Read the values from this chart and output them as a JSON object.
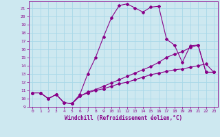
{
  "xlabel": "Windchill (Refroidissement éolien,°C)",
  "bg_color": "#cde8f0",
  "line_color": "#880088",
  "grid_color": "#a8d8e8",
  "xlim": [
    -0.5,
    23.5
  ],
  "ylim": [
    9,
    21.8
  ],
  "xticks": [
    0,
    1,
    2,
    3,
    4,
    5,
    6,
    7,
    8,
    9,
    10,
    11,
    12,
    13,
    14,
    15,
    16,
    17,
    18,
    19,
    20,
    21,
    22,
    23
  ],
  "yticks": [
    9,
    10,
    11,
    12,
    13,
    14,
    15,
    16,
    17,
    18,
    19,
    20,
    21
  ],
  "line1_x": [
    0,
    1,
    2,
    3,
    4,
    5,
    6,
    7,
    8,
    9,
    10,
    11,
    12,
    13,
    14,
    15,
    16,
    17,
    18,
    19,
    20,
    21,
    22,
    23
  ],
  "line1_y": [
    10.7,
    10.7,
    10.0,
    10.5,
    9.5,
    9.4,
    10.5,
    13.0,
    15.0,
    17.5,
    19.8,
    21.3,
    21.5,
    21.0,
    20.5,
    21.1,
    21.2,
    17.2,
    16.5,
    14.4,
    16.4,
    16.5,
    13.2,
    13.2
  ],
  "line2_x": [
    0,
    1,
    2,
    3,
    4,
    5,
    6,
    7,
    8,
    9,
    10,
    11,
    12,
    13,
    14,
    15,
    16,
    17,
    18,
    19,
    20,
    21,
    22,
    23
  ],
  "line2_y": [
    10.7,
    10.7,
    10.0,
    10.5,
    9.5,
    9.4,
    10.3,
    10.8,
    11.1,
    11.5,
    11.9,
    12.3,
    12.7,
    13.1,
    13.5,
    13.9,
    14.4,
    15.0,
    15.4,
    15.7,
    16.2,
    16.5,
    13.2,
    13.2
  ],
  "line3_x": [
    0,
    1,
    2,
    3,
    4,
    5,
    6,
    7,
    8,
    9,
    10,
    11,
    12,
    13,
    14,
    15,
    16,
    17,
    18,
    19,
    20,
    21,
    22,
    23
  ],
  "line3_y": [
    10.7,
    10.7,
    10.0,
    10.5,
    9.5,
    9.4,
    10.3,
    10.7,
    11.0,
    11.2,
    11.5,
    11.8,
    12.0,
    12.3,
    12.6,
    12.9,
    13.1,
    13.3,
    13.5,
    13.6,
    13.8,
    14.0,
    14.2,
    13.2
  ]
}
